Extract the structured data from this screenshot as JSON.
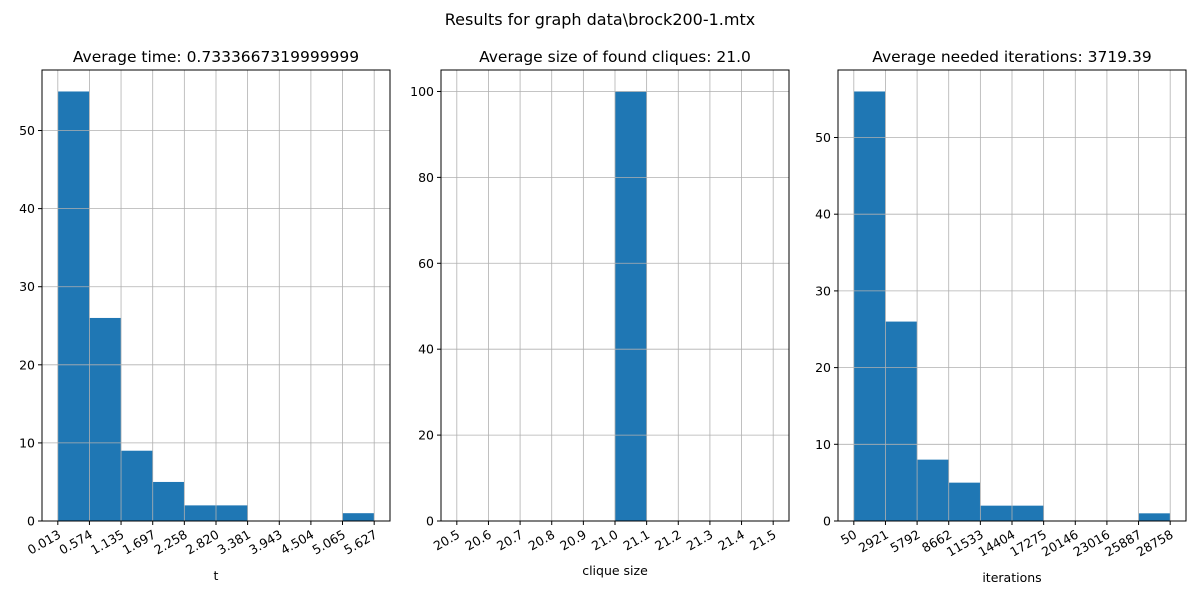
{
  "figure_title": "Results for graph data\\brock200-1.mtx",
  "chart_data": [
    {
      "type": "bar",
      "title": "Average time: 0.7333667319999999",
      "xlabel": "t",
      "ylabel": "",
      "bin_edges": [
        0.013,
        0.574,
        1.135,
        1.697,
        2.258,
        2.82,
        3.381,
        3.943,
        4.504,
        5.065,
        5.627
      ],
      "values": [
        55,
        26,
        9,
        5,
        2,
        2,
        0,
        0,
        0,
        1
      ],
      "xtick_labels": [
        "0.013",
        "0.574",
        "1.135",
        "1.697",
        "2.258",
        "2.820",
        "3.381",
        "3.943",
        "4.504",
        "5.065",
        "5.627"
      ],
      "yticks": [
        0,
        10,
        20,
        30,
        40,
        50
      ],
      "ylim": [
        0,
        57.75
      ],
      "grid": true,
      "color": "#1f77b4"
    },
    {
      "type": "bar",
      "title": "Average size of found cliques: 21.0",
      "xlabel": "clique size",
      "ylabel": "",
      "bin_edges": [
        20.5,
        20.6,
        20.7,
        20.8,
        20.9,
        21.0,
        21.1,
        21.2,
        21.3,
        21.4,
        21.5
      ],
      "values": [
        0,
        0,
        0,
        0,
        0,
        100,
        0,
        0,
        0,
        0
      ],
      "xtick_labels": [
        "20.5",
        "20.6",
        "20.7",
        "20.8",
        "20.9",
        "21.0",
        "21.1",
        "21.2",
        "21.3",
        "21.4",
        "21.5"
      ],
      "yticks": [
        0,
        20,
        40,
        60,
        80,
        100
      ],
      "ylim": [
        0,
        105
      ],
      "grid": true,
      "color": "#1f77b4"
    },
    {
      "type": "bar",
      "title": "Average needed iterations: 3719.39",
      "xlabel": "iterations",
      "ylabel": "",
      "bin_edges": [
        50,
        2921,
        5792,
        8662,
        11533,
        14404,
        17275,
        20146,
        23016,
        25887,
        28758
      ],
      "values": [
        56,
        26,
        8,
        5,
        2,
        2,
        0,
        0,
        0,
        1
      ],
      "xtick_labels": [
        "50",
        "2921",
        "5792",
        "8662",
        "11533",
        "14404",
        "17275",
        "20146",
        "23016",
        "25887",
        "28758"
      ],
      "yticks": [
        0,
        10,
        20,
        30,
        40,
        50
      ],
      "ylim": [
        0,
        58.8
      ],
      "grid": true,
      "color": "#1f77b4"
    }
  ]
}
